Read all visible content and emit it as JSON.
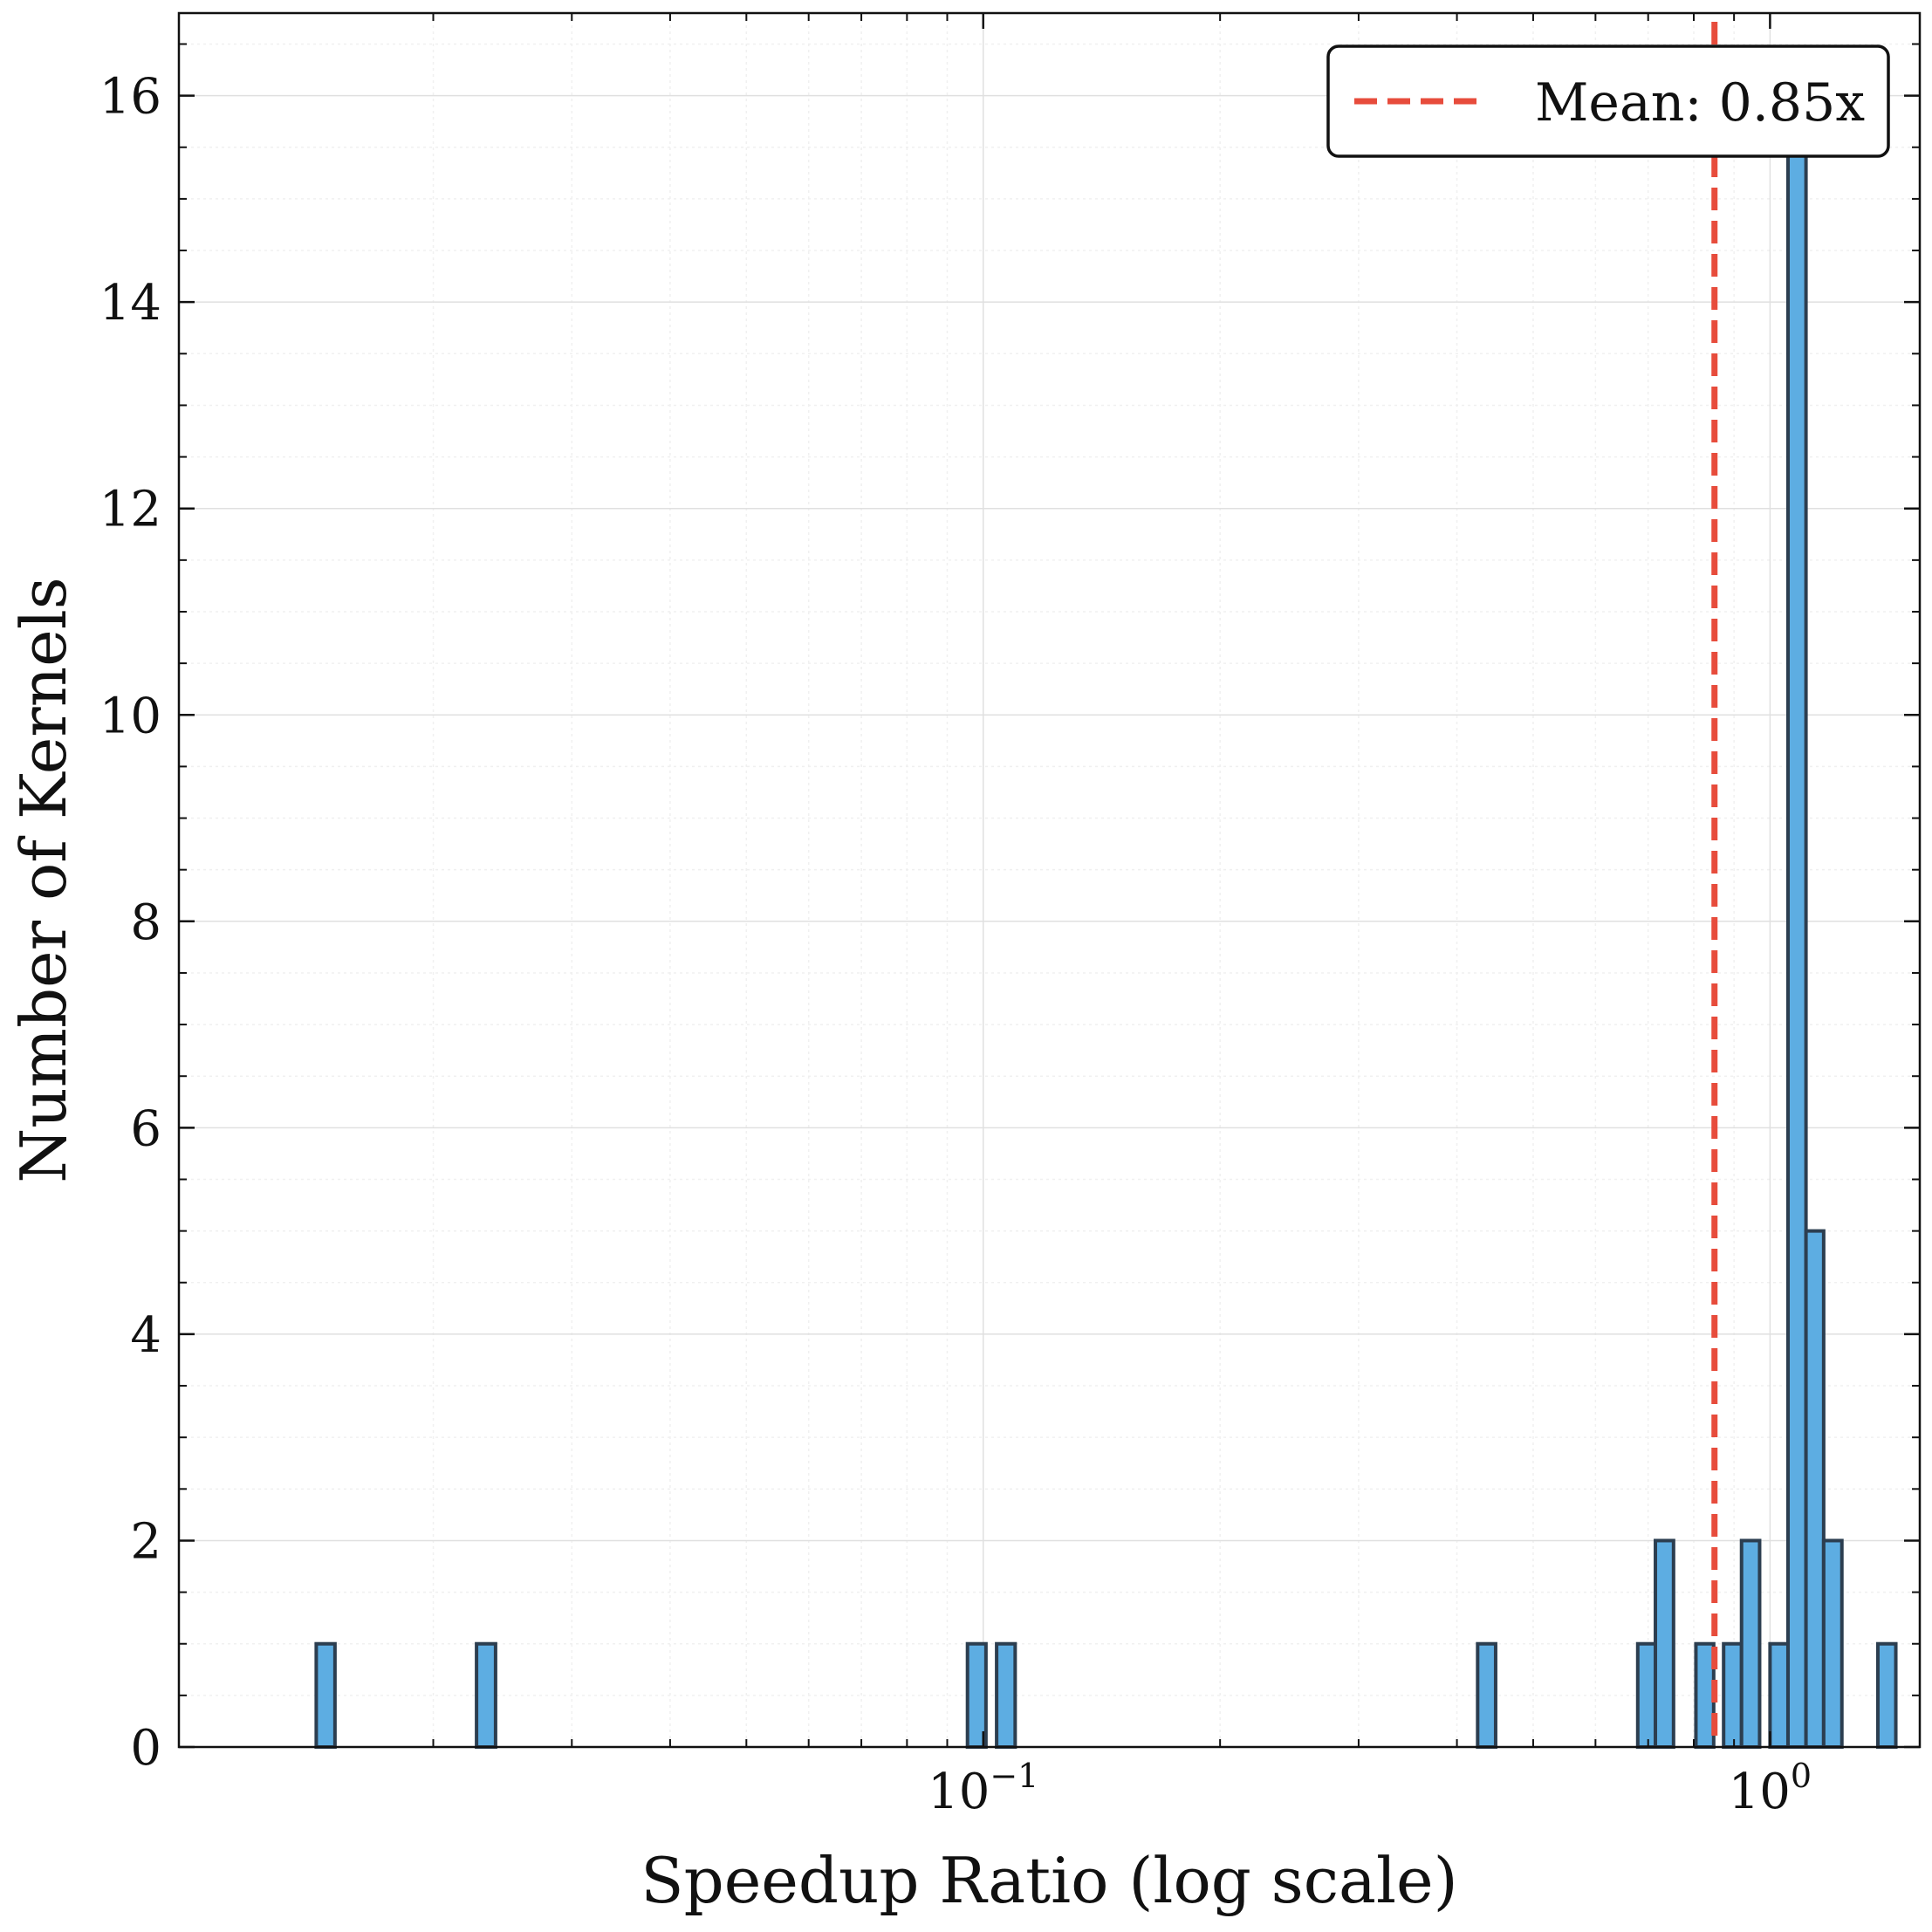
{
  "chart_data": {
    "type": "bar",
    "title": "",
    "xlabel": "Speedup Ratio (log scale)",
    "ylabel": "Number of Kernels",
    "x_scale": "log",
    "xlim": [
      0.0095,
      1.55
    ],
    "ylim": [
      0,
      16.8
    ],
    "grid": true,
    "legend_position": "top-right",
    "x_ticks": [
      {
        "value": 0.1,
        "base": "10",
        "exp": "−1"
      },
      {
        "value": 1,
        "base": "10",
        "exp": "0"
      }
    ],
    "y_ticks": [
      0,
      2,
      4,
      6,
      8,
      10,
      12,
      14,
      16
    ],
    "bins": [
      {
        "left": 0.0142,
        "right": 0.015,
        "count": 1
      },
      {
        "left": 0.0227,
        "right": 0.024,
        "count": 1
      },
      {
        "left": 0.0955,
        "right": 0.1008,
        "count": 1
      },
      {
        "left": 0.104,
        "right": 0.1098,
        "count": 1
      },
      {
        "left": 0.425,
        "right": 0.448,
        "count": 1
      },
      {
        "left": 0.679,
        "right": 0.715,
        "count": 1
      },
      {
        "left": 0.715,
        "right": 0.754,
        "count": 2
      },
      {
        "left": 0.805,
        "right": 0.848,
        "count": 1
      },
      {
        "left": 0.873,
        "right": 0.92,
        "count": 1
      },
      {
        "left": 0.92,
        "right": 0.97,
        "count": 2
      },
      {
        "left": 1.0,
        "right": 1.054,
        "count": 1
      },
      {
        "left": 1.054,
        "right": 1.111,
        "count": 16
      },
      {
        "left": 1.111,
        "right": 1.17,
        "count": 5
      },
      {
        "left": 1.17,
        "right": 1.234,
        "count": 2
      },
      {
        "left": 1.371,
        "right": 1.445,
        "count": 1
      }
    ],
    "mean_line": {
      "value": 0.85,
      "label": "Mean: 0.85x"
    },
    "colors": {
      "bar_fill": "#5dade2",
      "bar_edge": "#2c3e50",
      "mean_line": "#e74c3c",
      "grid": "#e0e0e0"
    }
  }
}
